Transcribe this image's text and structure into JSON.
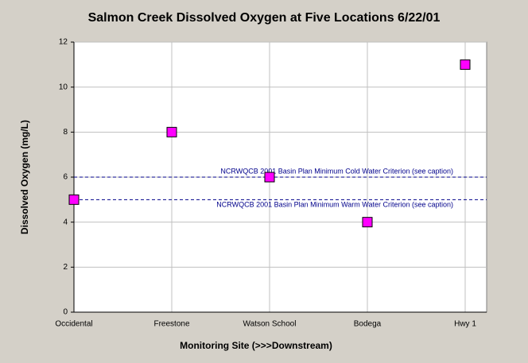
{
  "chart_data": {
    "type": "scatter",
    "title": "Salmon Creek Dissolved Oxygen at Five Locations 6/22/01",
    "x_label": "Monitoring Site (>>>Downstream)",
    "y_label": "Dissolved Oxygen (mg/L)",
    "categories": [
      "Occidental",
      "Freestone",
      "Watson School",
      "Bodega",
      "Hwy 1"
    ],
    "values": [
      5,
      8,
      6,
      4,
      11
    ],
    "color": "#ff00ff",
    "ylim": [
      0,
      12
    ],
    "yticks": [
      0,
      2,
      4,
      6,
      8,
      10,
      12
    ],
    "grid": true,
    "reference_lines": [
      {
        "value": 6,
        "label": "NCRWQCB 2001 Basin Plan Minimum Cold Water Criterion (see caption)",
        "color": "#00008b"
      },
      {
        "value": 5,
        "label": "NCRWQCB 2001 Basin Plan Minimum Warm Water Criterion (see caption)",
        "color": "#00008b"
      }
    ]
  }
}
